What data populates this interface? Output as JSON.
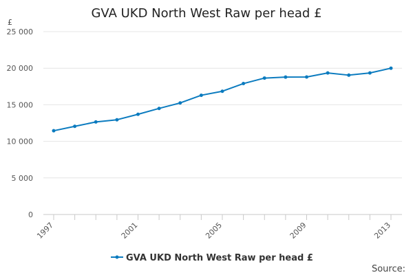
{
  "chart_data": {
    "type": "line",
    "title": "GVA UKD North West Raw per head £",
    "y_unit": "£",
    "xlabel": "",
    "ylabel": "",
    "x": [
      1997,
      1998,
      1999,
      2000,
      2001,
      2002,
      2003,
      2004,
      2005,
      2006,
      2007,
      2008,
      2009,
      2010,
      2011,
      2012,
      2013
    ],
    "x_tick_labels": [
      "1997",
      "2001",
      "2005",
      "2009",
      "2013"
    ],
    "y_ticks": [
      0,
      5000,
      10000,
      15000,
      20000,
      25000
    ],
    "y_tick_labels": [
      "0",
      "5 000",
      "10 000",
      "15 000",
      "20 000",
      "25 000"
    ],
    "ylim": [
      0,
      25000
    ],
    "series": [
      {
        "name": "GVA UKD North West Raw per head £",
        "color": "#0b7bbf",
        "values": [
          11450,
          12050,
          12650,
          12950,
          13700,
          14500,
          15250,
          16300,
          16850,
          17900,
          18650,
          18780,
          18800,
          19350,
          19050,
          19350,
          20000
        ]
      }
    ],
    "grid": true,
    "legend_position": "bottom-center"
  },
  "source_label": "Source:"
}
